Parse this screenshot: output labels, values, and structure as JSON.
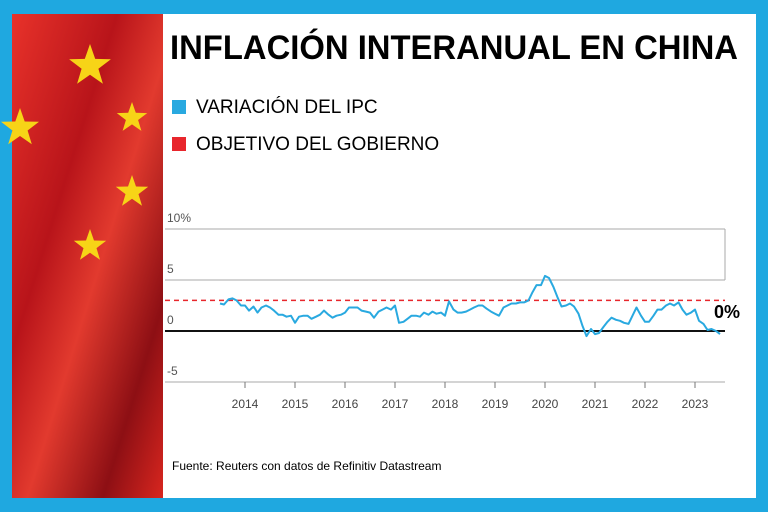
{
  "chart_data": {
    "type": "line",
    "title": "INFLACIÓN INTERANUAL EN CHINA",
    "source": "Fuente: Reuters con datos de Refinitiv Datastream",
    "annotation": {
      "text": "0%",
      "value": 0
    },
    "series": [
      {
        "name": "VARIACIÓN DEL IPC",
        "color": "#29a9e0",
        "x": [
          2013.5,
          2013.58,
          2013.67,
          2013.75,
          2013.83,
          2013.92,
          2014.0,
          2014.08,
          2014.17,
          2014.25,
          2014.33,
          2014.42,
          2014.5,
          2014.58,
          2014.67,
          2014.75,
          2014.83,
          2014.92,
          2015.0,
          2015.08,
          2015.17,
          2015.25,
          2015.33,
          2015.42,
          2015.5,
          2015.58,
          2015.67,
          2015.75,
          2015.83,
          2015.92,
          2016.0,
          2016.08,
          2016.17,
          2016.25,
          2016.33,
          2016.42,
          2016.5,
          2016.58,
          2016.67,
          2016.75,
          2016.83,
          2016.92,
          2017.0,
          2017.08,
          2017.17,
          2017.25,
          2017.33,
          2017.42,
          2017.5,
          2017.58,
          2017.67,
          2017.75,
          2017.83,
          2017.92,
          2018.0,
          2018.08,
          2018.17,
          2018.25,
          2018.33,
          2018.42,
          2018.5,
          2018.58,
          2018.67,
          2018.75,
          2018.83,
          2018.92,
          2019.0,
          2019.08,
          2019.17,
          2019.25,
          2019.33,
          2019.42,
          2019.5,
          2019.58,
          2019.67,
          2019.75,
          2019.83,
          2019.92,
          2020.0,
          2020.08,
          2020.17,
          2020.25,
          2020.33,
          2020.42,
          2020.5,
          2020.58,
          2020.67,
          2020.75,
          2020.83,
          2020.92,
          2021.0,
          2021.08,
          2021.17,
          2021.25,
          2021.33,
          2021.42,
          2021.5,
          2021.58,
          2021.67,
          2021.75,
          2021.83,
          2021.92,
          2022.0,
          2022.08,
          2022.17,
          2022.25,
          2022.33,
          2022.42,
          2022.5,
          2022.58,
          2022.67,
          2022.75,
          2022.83,
          2022.92,
          2023.0,
          2023.08,
          2023.17,
          2023.25,
          2023.33,
          2023.42,
          2023.5
        ],
        "values": [
          2.7,
          2.6,
          3.1,
          3.2,
          3.0,
          2.5,
          2.5,
          2.0,
          2.4,
          1.8,
          2.3,
          2.5,
          2.3,
          2.0,
          1.6,
          1.6,
          1.4,
          1.5,
          0.8,
          1.4,
          1.5,
          1.5,
          1.2,
          1.4,
          1.6,
          2.0,
          1.6,
          1.3,
          1.5,
          1.6,
          1.8,
          2.3,
          2.3,
          2.3,
          2.0,
          1.9,
          1.8,
          1.3,
          1.9,
          2.1,
          2.3,
          2.1,
          2.5,
          0.8,
          0.9,
          1.2,
          1.5,
          1.5,
          1.4,
          1.8,
          1.6,
          1.9,
          1.7,
          1.8,
          1.5,
          2.9,
          2.1,
          1.8,
          1.8,
          1.9,
          2.1,
          2.3,
          2.5,
          2.5,
          2.2,
          1.9,
          1.7,
          1.5,
          2.3,
          2.5,
          2.7,
          2.7,
          2.8,
          2.8,
          3.0,
          3.8,
          4.5,
          4.5,
          5.4,
          5.2,
          4.3,
          3.3,
          2.4,
          2.5,
          2.7,
          2.4,
          1.7,
          0.5,
          -0.5,
          0.2,
          -0.3,
          -0.2,
          0.4,
          0.9,
          1.3,
          1.1,
          1.0,
          0.8,
          0.7,
          1.5,
          2.3,
          1.5,
          0.9,
          0.9,
          1.5,
          2.1,
          2.1,
          2.5,
          2.7,
          2.5,
          2.8,
          2.1,
          1.6,
          1.8,
          2.1,
          1.0,
          0.7,
          0.1,
          0.2,
          0.0,
          -0.3
        ]
      }
    ],
    "target": {
      "name": "OBJETIVO DEL GOBIERNO",
      "value": 3,
      "color": "#e8262c"
    },
    "xlim": [
      2012.4,
      2023.6
    ],
    "xticks": [
      2014,
      2015,
      2016,
      2017,
      2018,
      2019,
      2020,
      2021,
      2022,
      2023
    ],
    "ylim": [
      -5,
      10
    ],
    "yticks": [
      -5,
      0,
      5,
      {
        "value": 10,
        "label": "10%"
      }
    ],
    "grid": true
  }
}
